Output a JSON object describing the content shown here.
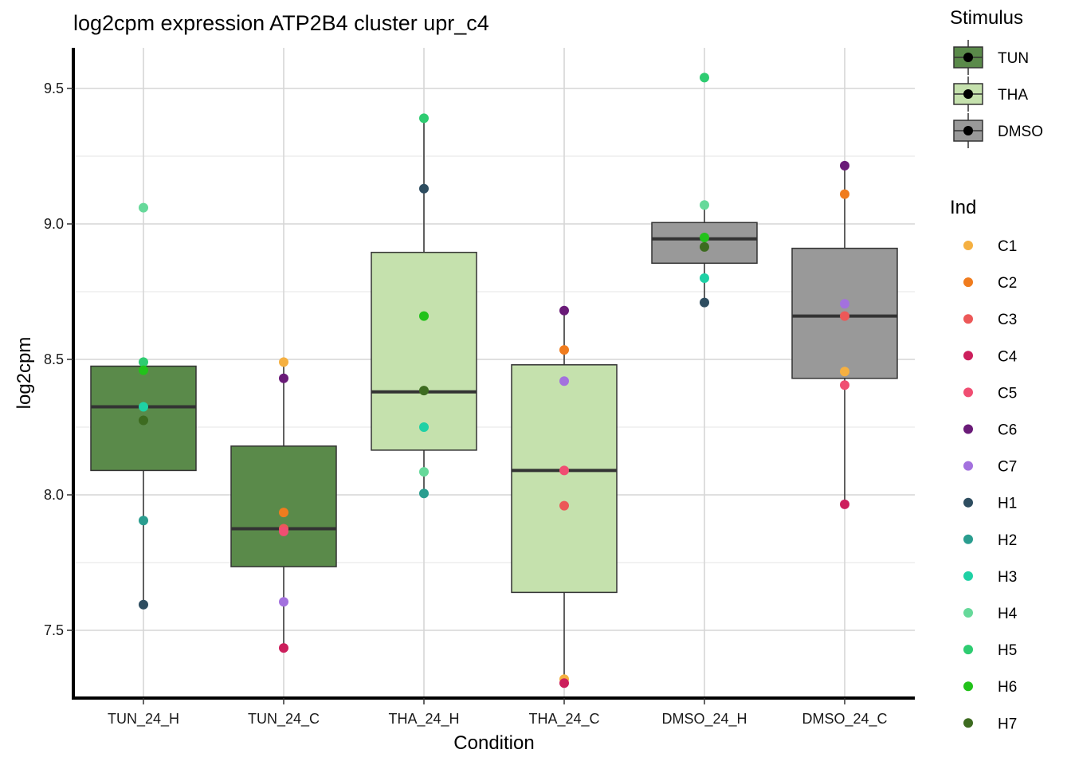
{
  "chart_data": {
    "type": "box",
    "title": "log2cpm expression ATP2B4 cluster upr_c4",
    "xlabel": "Condition",
    "ylabel": "log2cpm",
    "ylim": [
      7.25,
      9.65
    ],
    "yticks": [
      7.5,
      8.0,
      8.5,
      9.0,
      9.5
    ],
    "ytick_labels": [
      "7.5",
      "8.0",
      "8.5",
      "9.0",
      "9.5"
    ],
    "grid": true,
    "categories": [
      "TUN_24_H",
      "TUN_24_C",
      "THA_24_H",
      "THA_24_C",
      "DMSO_24_H",
      "DMSO_24_C"
    ],
    "stimulus_legend": {
      "title": "Stimulus",
      "items": [
        {
          "label": "TUN",
          "color": "#5a8a4a"
        },
        {
          "label": "THA",
          "color": "#c5e1ad"
        },
        {
          "label": "DMSO",
          "color": "#999999"
        }
      ]
    },
    "ind_legend": {
      "title": "Ind",
      "items": [
        {
          "label": "C1",
          "color": "#f5b041"
        },
        {
          "label": "C2",
          "color": "#f07c1e"
        },
        {
          "label": "C3",
          "color": "#ec5858"
        },
        {
          "label": "C4",
          "color": "#cc1f5c"
        },
        {
          "label": "C5",
          "color": "#f04e72"
        },
        {
          "label": "C6",
          "color": "#6a1b78"
        },
        {
          "label": "C7",
          "color": "#a371de"
        },
        {
          "label": "H1",
          "color": "#2e4d60"
        },
        {
          "label": "H2",
          "color": "#2a9d8f"
        },
        {
          "label": "H3",
          "color": "#1fd1a5"
        },
        {
          "label": "H4",
          "color": "#66d99a"
        },
        {
          "label": "H5",
          "color": "#2ecc71"
        },
        {
          "label": "H6",
          "color": "#22c21a"
        },
        {
          "label": "H7",
          "color": "#3d6b20"
        }
      ]
    },
    "boxes": [
      {
        "category": "TUN_24_H",
        "stimulus": "TUN",
        "min": 7.595,
        "q1": 8.09,
        "median": 8.325,
        "q3": 8.475,
        "max": 8.49,
        "points": [
          {
            "ind": "H4",
            "y": 9.06
          },
          {
            "ind": "H5",
            "y": 8.49
          },
          {
            "ind": "H6",
            "y": 8.46
          },
          {
            "ind": "H3",
            "y": 8.325
          },
          {
            "ind": "H7",
            "y": 8.275
          },
          {
            "ind": "H2",
            "y": 7.905
          },
          {
            "ind": "H1",
            "y": 7.595
          }
        ]
      },
      {
        "category": "TUN_24_C",
        "stimulus": "TUN",
        "min": 7.435,
        "q1": 7.735,
        "median": 7.875,
        "q3": 8.18,
        "max": 8.49,
        "points": [
          {
            "ind": "C1",
            "y": 8.49
          },
          {
            "ind": "C6",
            "y": 8.43
          },
          {
            "ind": "C2",
            "y": 7.935
          },
          {
            "ind": "C3",
            "y": 7.875
          },
          {
            "ind": "C5",
            "y": 7.865
          },
          {
            "ind": "C7",
            "y": 7.605
          },
          {
            "ind": "C4",
            "y": 7.435
          }
        ]
      },
      {
        "category": "THA_24_H",
        "stimulus": "THA",
        "min": 8.005,
        "q1": 8.165,
        "median": 8.38,
        "q3": 8.895,
        "max": 9.39,
        "points": [
          {
            "ind": "H5",
            "y": 9.39
          },
          {
            "ind": "H1",
            "y": 9.13
          },
          {
            "ind": "H6",
            "y": 8.66
          },
          {
            "ind": "H7",
            "y": 8.385
          },
          {
            "ind": "H3",
            "y": 8.25
          },
          {
            "ind": "H4",
            "y": 8.085
          },
          {
            "ind": "H2",
            "y": 8.005
          }
        ]
      },
      {
        "category": "THA_24_C",
        "stimulus": "THA",
        "min": 7.305,
        "q1": 7.64,
        "median": 8.09,
        "q3": 8.48,
        "max": 8.68,
        "points": [
          {
            "ind": "C6",
            "y": 8.68
          },
          {
            "ind": "C2",
            "y": 8.535
          },
          {
            "ind": "C7",
            "y": 8.42
          },
          {
            "ind": "C5",
            "y": 8.09
          },
          {
            "ind": "C3",
            "y": 7.96
          },
          {
            "ind": "C1",
            "y": 7.32
          },
          {
            "ind": "C4",
            "y": 7.305
          }
        ]
      },
      {
        "category": "DMSO_24_H",
        "stimulus": "DMSO",
        "min": 8.71,
        "q1": 8.855,
        "median": 8.945,
        "q3": 9.005,
        "max": 9.07,
        "points": [
          {
            "ind": "H5",
            "y": 9.54
          },
          {
            "ind": "H4",
            "y": 9.07
          },
          {
            "ind": "H6",
            "y": 8.95
          },
          {
            "ind": "H7",
            "y": 8.915
          },
          {
            "ind": "H3",
            "y": 8.8
          },
          {
            "ind": "H1",
            "y": 8.71
          }
        ]
      },
      {
        "category": "DMSO_24_C",
        "stimulus": "DMSO",
        "min": 7.965,
        "q1": 8.43,
        "median": 8.66,
        "q3": 8.91,
        "max": 9.215,
        "points": [
          {
            "ind": "C6",
            "y": 9.215
          },
          {
            "ind": "C2",
            "y": 9.11
          },
          {
            "ind": "C7",
            "y": 8.705
          },
          {
            "ind": "C3",
            "y": 8.66
          },
          {
            "ind": "C1",
            "y": 8.455
          },
          {
            "ind": "C5",
            "y": 8.405
          },
          {
            "ind": "C4",
            "y": 7.965
          }
        ]
      }
    ]
  }
}
